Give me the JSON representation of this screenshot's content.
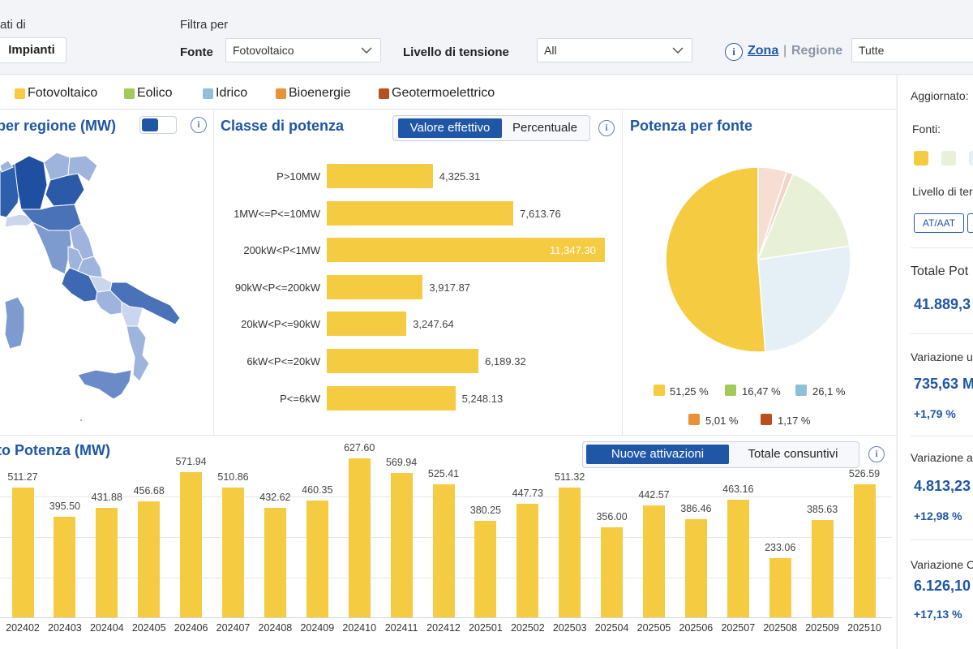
{
  "filters": {
    "dati_di_label": "ati di",
    "impianti_label": "Impianti",
    "filtra_per_label": "Filtra per",
    "fonte_label": "Fonte",
    "fonte_value": "Fotovoltaico",
    "livello_label": "Livello di tensione",
    "livello_value": "All",
    "info_symbol": "i",
    "zona_label": "Zona",
    "separator": "|",
    "regione_label": "Regione",
    "regione_value": "Tutte"
  },
  "legend": {
    "items": [
      {
        "label": "Fotovoltaico",
        "color": "#f5cb42"
      },
      {
        "label": "Eolico",
        "color": "#a3c95a"
      },
      {
        "label": "Idrico",
        "color": "#8fc0d8"
      },
      {
        "label": "Bioenergie",
        "color": "#e8923a"
      },
      {
        "label": "Geotermoelettrico",
        "color": "#b8501e"
      }
    ]
  },
  "map_panel": {
    "title": "per regione (MW)",
    "info_symbol": "i",
    "colors": {
      "dark": "#1f56a6",
      "mid": "#4a72b8",
      "light": "#9eb4dc",
      "pale": "#c9d6ee"
    }
  },
  "classe_panel": {
    "title": "Classe di potenza",
    "toggle": {
      "active": "Valore effettivo",
      "inactive": "Percentuale"
    },
    "info_symbol": "i"
  },
  "pie_panel": {
    "title": "Potenza per fonte",
    "legend": [
      {
        "label": "51,25 %",
        "color": "#f5cb42"
      },
      {
        "label": "16,47 %",
        "color": "#a3c95a"
      },
      {
        "label": "26,1 %",
        "color": "#8fc0d8"
      },
      {
        "label": "5,01 %",
        "color": "#e8923a"
      },
      {
        "label": "1,17 %",
        "color": "#b8501e"
      }
    ]
  },
  "trend_panel": {
    "title": "to Potenza (MW)",
    "toggle": {
      "active": "Nuove attivazioni",
      "inactive": "Totale consuntivi"
    },
    "info_symbol": "i"
  },
  "sidebar": {
    "aggiornato_label": "Aggiornato:",
    "fonti_label": "Fonti:",
    "livello_label": "Livello di ter",
    "btn_at": "AT/AAT",
    "totale_label": "Totale Pot",
    "totale_value": "41.889,3",
    "var1_label": "Variazione u",
    "var1_value": "735,63 M",
    "var1_pct": "+1,79 %",
    "var2_label": "Variazione a",
    "var2_value": "4.813,23",
    "var2_pct": "+12,98 %",
    "var3_label": "Variazione C",
    "var3_value": "6.126,10",
    "var3_pct": "+17,13 %"
  },
  "chart_data": [
    {
      "type": "bar",
      "orientation": "horizontal",
      "title": "Classe di potenza",
      "categories": [
        "P>10MW",
        "1MW<=P<=10MW",
        "200kW<P<1MW",
        "90kW<P<=200kW",
        "20kW<P<=90kW",
        "6kW<P<=20kW",
        "P<=6kW"
      ],
      "values": [
        4325.31,
        7613.76,
        11347.3,
        3917.87,
        3247.64,
        6189.32,
        5248.13
      ],
      "value_labels": [
        "4,325.31",
        "7,613.76",
        "11,347.30",
        "3,917.87",
        "3,247.64",
        "6,189.32",
        "5,248.13"
      ],
      "color": "#f5cb42",
      "xlim": [
        0,
        11347.3
      ]
    },
    {
      "type": "pie",
      "title": "Potenza per fonte",
      "labels": [
        "Fotovoltaico",
        "Eolico",
        "Idrico",
        "Bioenergie",
        "Geotermoelettrico"
      ],
      "values": [
        51.25,
        16.47,
        26.1,
        5.01,
        1.17
      ],
      "colors": [
        "#f5cb42",
        "#e9f0d8",
        "#e5f0f6",
        "#f8ddd2",
        "#f0d5c8"
      ]
    },
    {
      "type": "bar",
      "title": "to Potenza (MW)",
      "categories": [
        "202402",
        "202403",
        "202404",
        "202405",
        "202406",
        "202407",
        "202408",
        "202409",
        "202410",
        "202411",
        "202412",
        "202501",
        "202502",
        "202503",
        "202504",
        "202505",
        "202506",
        "202507",
        "202508",
        "202509",
        "202510"
      ],
      "values": [
        511.27,
        395.5,
        431.88,
        456.68,
        571.94,
        510.86,
        432.62,
        460.35,
        627.6,
        569.94,
        525.41,
        380.25,
        447.73,
        511.32,
        356.0,
        442.57,
        386.46,
        463.16,
        233.06,
        385.63,
        526.59
      ],
      "color": "#f5cb42",
      "ylim": [
        0,
        700
      ],
      "grid": true
    }
  ]
}
